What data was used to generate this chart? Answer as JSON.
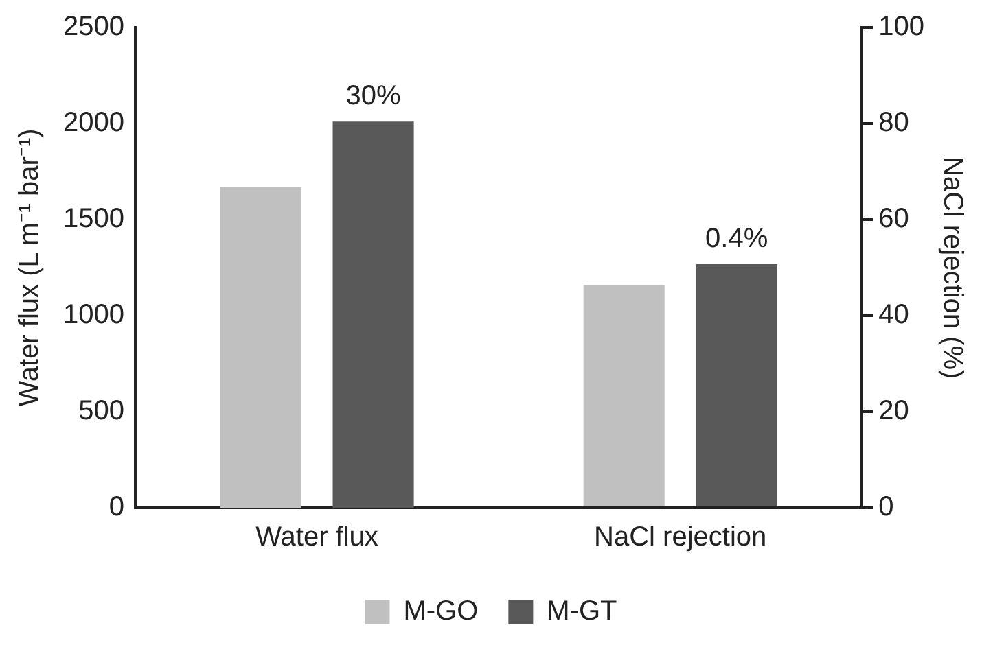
{
  "chart_data": {
    "type": "bar",
    "categories": [
      "Water flux",
      "NaCl rejection"
    ],
    "ylabel": "Water flux (L m⁻¹ bar⁻¹)",
    "y2label": "NaCl rejection (%)",
    "ylim": [
      0,
      2500
    ],
    "yticks": [
      0,
      500,
      1000,
      1500,
      2000,
      2500
    ],
    "y2lim": [
      0,
      100
    ],
    "y2ticks": [
      0,
      20,
      40,
      60,
      80,
      100
    ],
    "series": [
      {
        "name": "M-GO",
        "color": "#c0c0c0",
        "values": [
          1670,
          null
        ]
      },
      {
        "name": "M-GT",
        "color": "#595959",
        "values": [
          2010,
          null
        ]
      },
      {
        "color": "#c0c0c0",
        "values": [
          null,
          46.4
        ],
        "axis": "y2"
      },
      {
        "color": "#595959",
        "values": [
          null,
          50.7
        ],
        "axis": "y2"
      }
    ],
    "annotations": [
      "30%",
      "0.4%"
    ],
    "grid": false,
    "legend": "bottom"
  }
}
